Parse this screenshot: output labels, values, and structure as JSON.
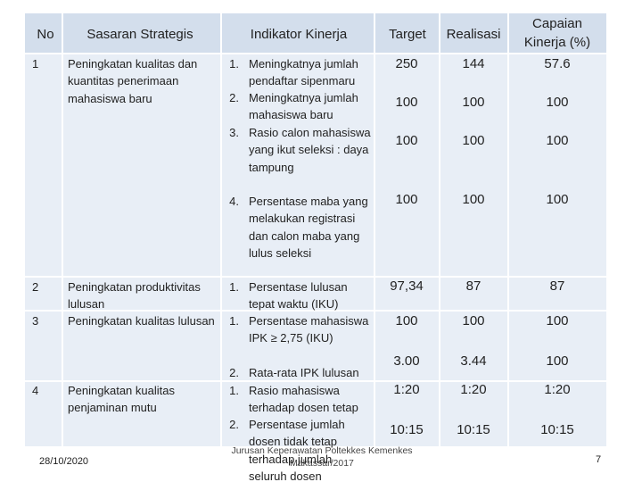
{
  "header": {
    "no": "No",
    "goal": "Sasaran Strategis",
    "indicator": "Indikator Kinerja",
    "target": "Target",
    "realization": "Realisasi",
    "achievement": "Capaian Kinerja (%)"
  },
  "rows": [
    {
      "no": "1",
      "goal": "Peningkatan kualitas dan kuantitas penerimaan mahasiswa baru",
      "indicators": [
        {
          "num": "1.",
          "text": "Meningkatnya jumlah pendaftar sipenmaru",
          "target": "250",
          "realization": "144",
          "achievement": "57.6"
        },
        {
          "num": "2.",
          "text": "Meningkatnya jumlah mahasiswa baru",
          "target": "100",
          "realization": "100",
          "achievement": "100"
        },
        {
          "num": "3.",
          "text": "Rasio calon mahasiswa yang ikut seleksi : daya tampung",
          "target": "100",
          "realization": "100",
          "achievement": "100"
        },
        {
          "num": "4.",
          "text": "Persentase maba yang melakukan registrasi dan calon maba yang lulus seleksi",
          "target": "100",
          "realization": "100",
          "achievement": "100"
        }
      ]
    },
    {
      "no": "2",
      "goal": "Peningkatan produktivitas lulusan",
      "indicators": [
        {
          "num": "1.",
          "text": "Persentase lulusan tepat waktu (IKU)",
          "target": "97,34",
          "realization": "87",
          "achievement": "87"
        }
      ]
    },
    {
      "no": "3",
      "goal": "Peningkatan kualitas lulusan",
      "indicators": [
        {
          "num": "1.",
          "text": "Persentase mahasiswa IPK ≥ 2,75 (IKU)",
          "target": "100",
          "realization": "100",
          "achievement": "100"
        },
        {
          "num": "2.",
          "text": "Rata-rata IPK lulusan",
          "target": "3.00",
          "realization": "3.44",
          "achievement": "100"
        }
      ]
    },
    {
      "no": "4",
      "goal": "Peningkatan kualitas penjaminan mutu",
      "indicators": [
        {
          "num": "1.",
          "text": "Rasio mahasiswa terhadap dosen tetap",
          "target": "1:20",
          "realization": "1:20",
          "achievement": "1:20"
        },
        {
          "num": "2.",
          "text": "Persentase jumlah dosen tidak tetap terhadap jumlah seluruh dosen",
          "target": "10:15",
          "realization": "10:15",
          "achievement": "10:15"
        }
      ]
    }
  ],
  "footer": {
    "date": "28/10/2020",
    "institution": "Jurusan Keperawatan Poltekkes Kemenkes Makassar/2017",
    "page": "7"
  }
}
